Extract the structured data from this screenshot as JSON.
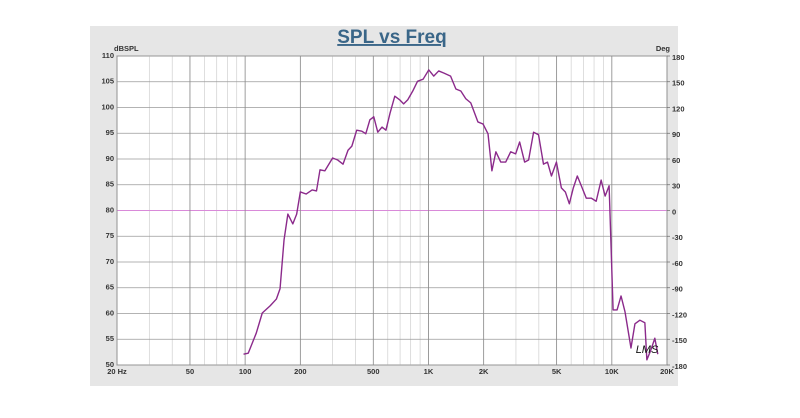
{
  "chart_data": {
    "type": "line",
    "title": "SPL vs Freq",
    "y_label": "dBSPL",
    "y2_label": "Deg",
    "annotation": "LMS",
    "x_log": true,
    "grid": true,
    "minor_grid": true,
    "zero_line_color": "#d98ad9",
    "xlim": [
      20,
      20000
    ],
    "xticks": [
      {
        "value": 20,
        "label": "20 Hz"
      },
      50,
      100,
      200,
      500,
      {
        "value": 1000,
        "label": "1K"
      },
      {
        "value": 2000,
        "label": "2K"
      },
      {
        "value": 5000,
        "label": "5K"
      },
      {
        "value": 10000,
        "label": "10K"
      },
      {
        "value": 20000,
        "label": "20K"
      }
    ],
    "ylim": [
      50,
      110
    ],
    "yticks": [
      50,
      55,
      60,
      65,
      70,
      75,
      80,
      85,
      90,
      95,
      100,
      105,
      110
    ],
    "y2lim": [
      -180,
      180
    ],
    "y2ticks": [
      -180,
      -150,
      -120,
      -90,
      -60,
      -30,
      0,
      30,
      60,
      90,
      120,
      150,
      180
    ],
    "x": [
      98,
      104,
      115,
      124,
      137,
      148,
      155,
      163,
      171,
      182,
      191,
      200,
      215,
      232,
      245,
      256,
      272,
      300,
      320,
      342,
      364,
      382,
      406,
      433,
      455,
      479,
      503,
      529,
      558,
      586,
      617,
      655,
      696,
      732,
      771,
      821,
      872,
      935,
      1004,
      1068,
      1137,
      1211,
      1320,
      1411,
      1501,
      1598,
      1701,
      1860,
      1983,
      2112,
      2218,
      2332,
      2479,
      2638,
      2807,
      2988,
      3143,
      3345,
      3517,
      3743,
      3983,
      4239,
      4457,
      4686,
      4987,
      5307,
      5580,
      5866,
      6167,
      6484,
      6817,
      7255,
      7721,
      8217,
      8746,
      9194,
      9666,
      10162,
      10683,
      11231,
      11807,
      12720,
      13373,
      14231,
      15144,
      15531,
      16327,
      17165,
      17818
    ],
    "series": [
      {
        "color": "#8b2a8b",
        "values": [
          52.1,
          52.3,
          56.2,
          60.1,
          61.5,
          62.8,
          64.8,
          74.3,
          79.3,
          77.4,
          79.3,
          83.6,
          83.2,
          84.0,
          83.8,
          87.9,
          87.7,
          90.2,
          89.8,
          89.0,
          91.7,
          92.5,
          95.6,
          95.4,
          94.9,
          97.6,
          98.2,
          95.2,
          96.2,
          95.6,
          98.9,
          102.2,
          101.5,
          100.7,
          101.5,
          103.2,
          105.1,
          105.5,
          107.3,
          106.1,
          107.1,
          106.7,
          106.1,
          103.6,
          103.2,
          101.7,
          100.9,
          97.2,
          96.8,
          94.9,
          87.7,
          91.4,
          89.4,
          89.4,
          91.4,
          91.0,
          93.3,
          89.4,
          89.8,
          95.2,
          94.7,
          89.0,
          89.4,
          86.7,
          89.4,
          84.4,
          83.6,
          81.3,
          84.4,
          86.7,
          84.8,
          82.4,
          82.4,
          81.8,
          85.9,
          82.8,
          84.8,
          60.7,
          60.7,
          63.4,
          60.3,
          53.3,
          58.0,
          58.7,
          58.2,
          51.0,
          52.9,
          55.2,
          52.1
        ]
      }
    ]
  }
}
